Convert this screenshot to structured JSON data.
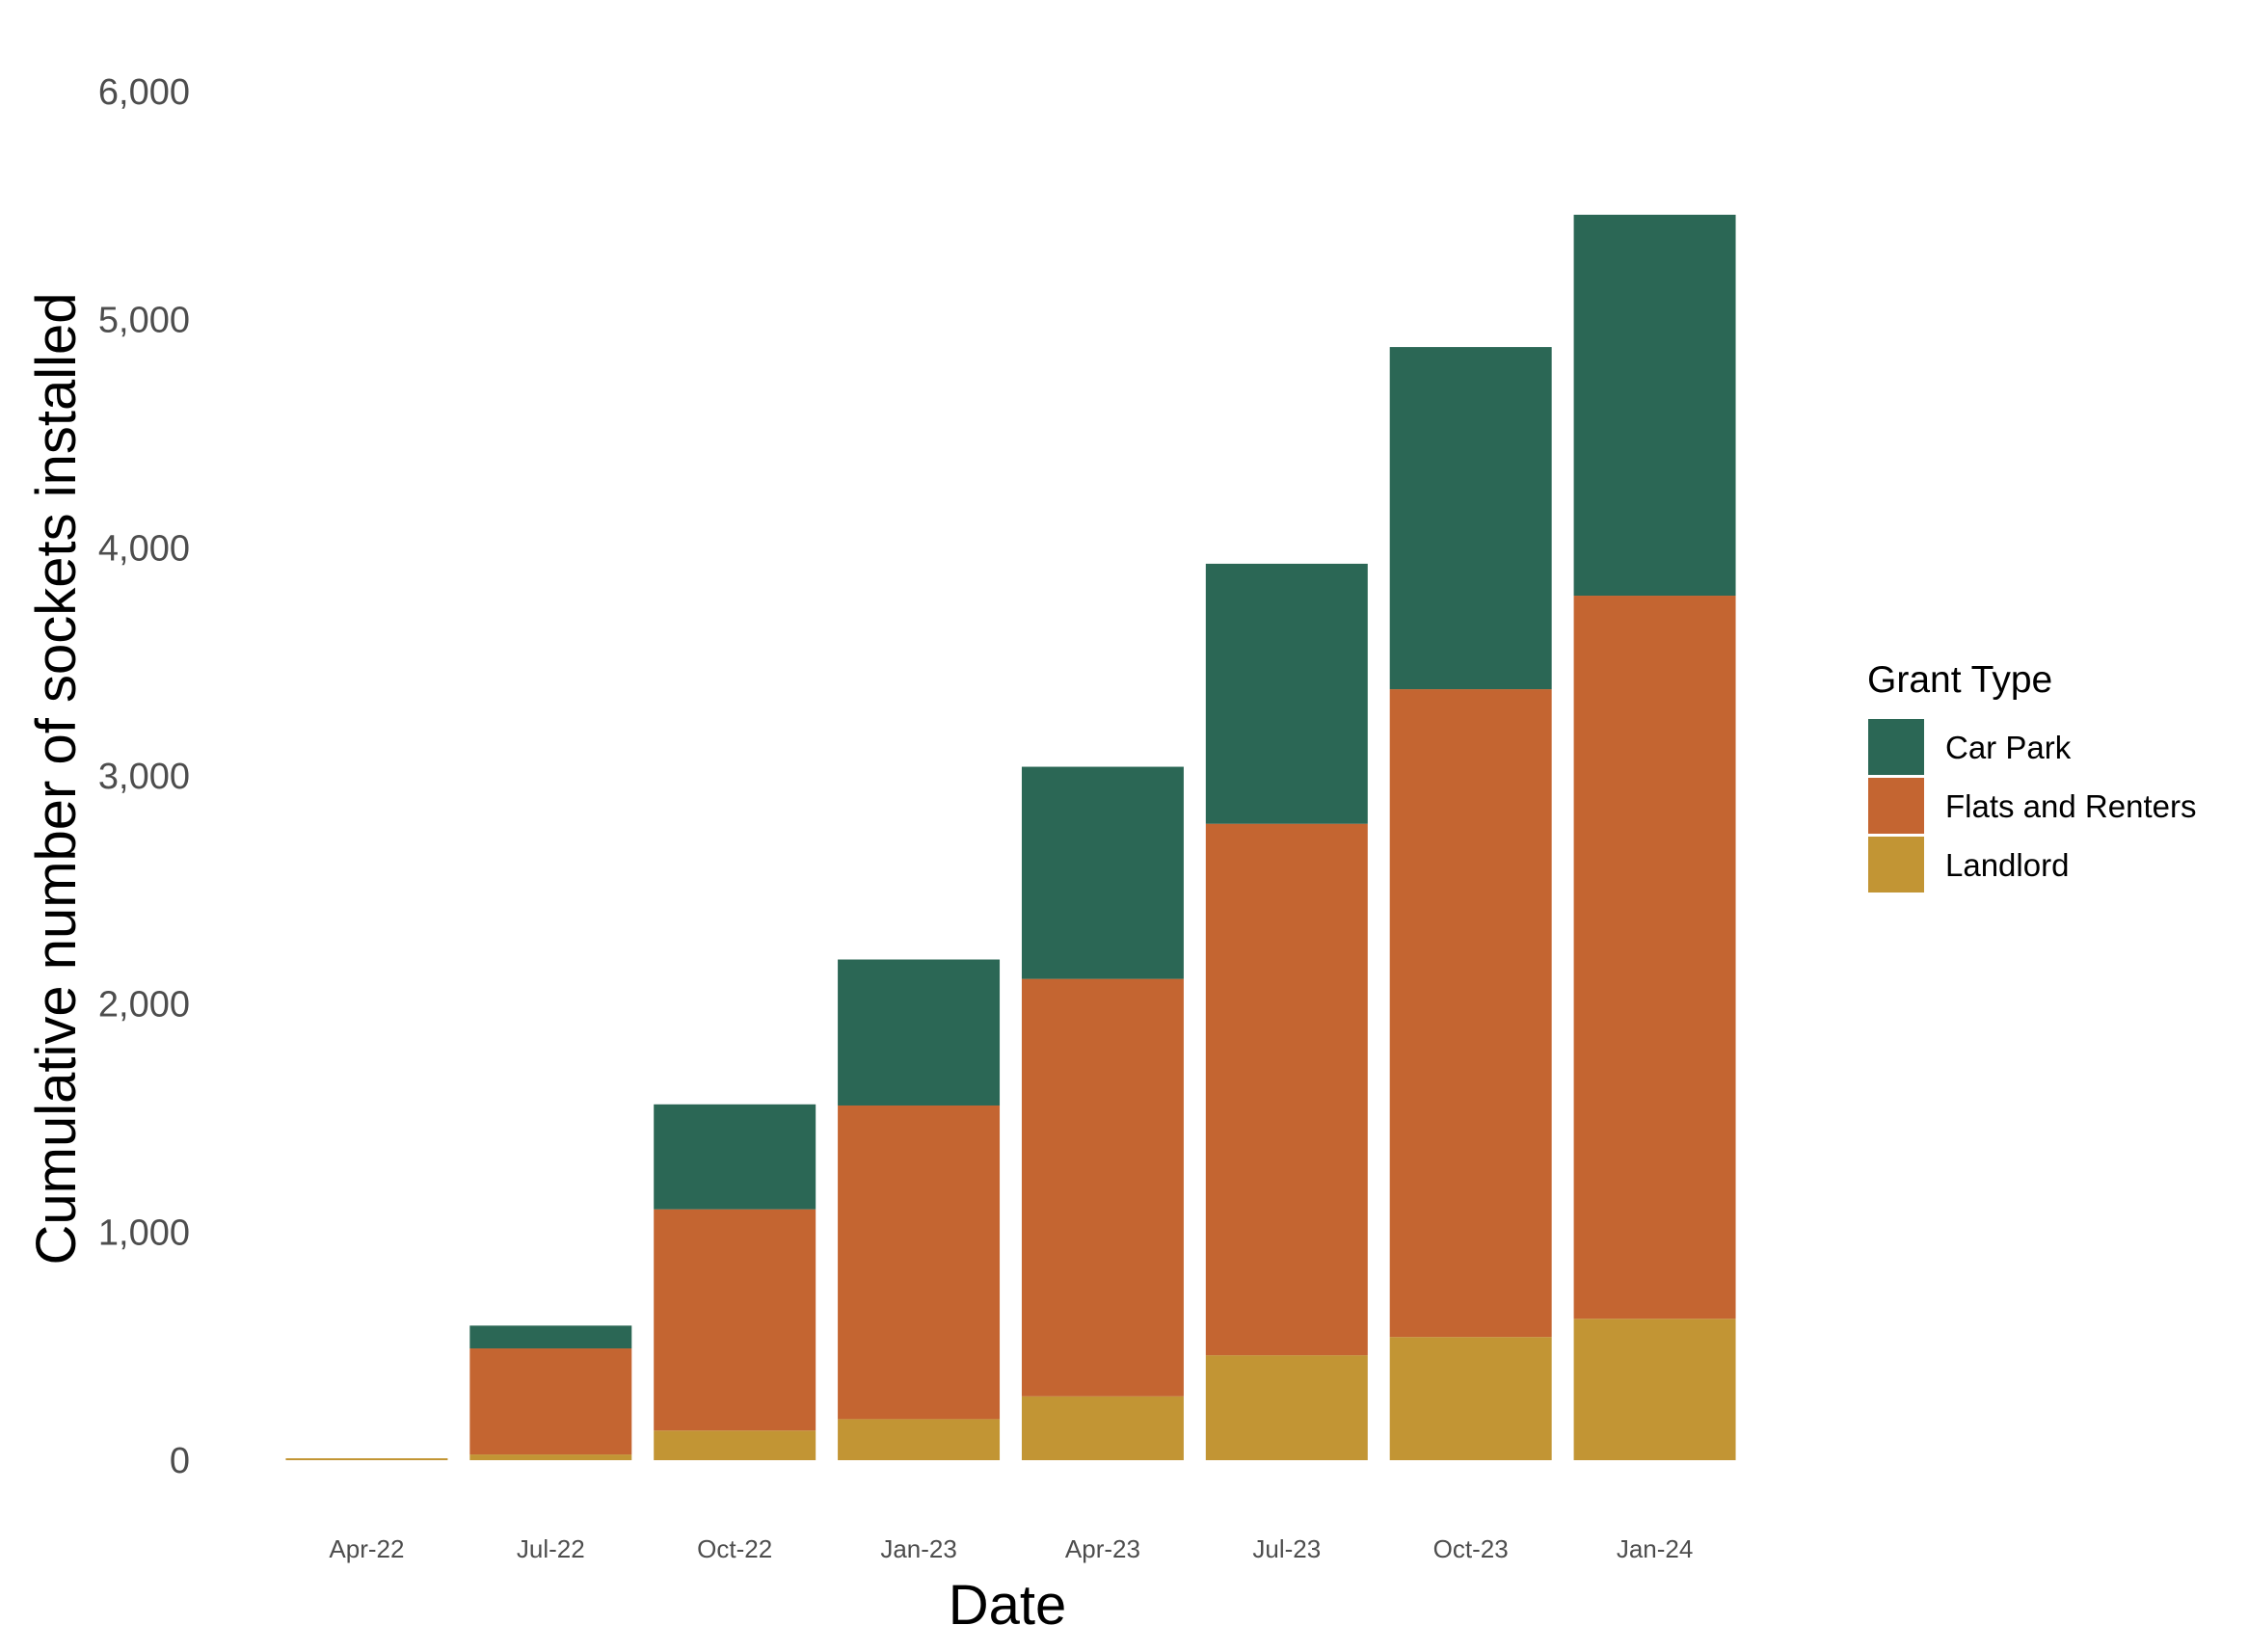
{
  "chart_data": {
    "type": "bar",
    "stacked": true,
    "title": "",
    "xlabel": "Date",
    "ylabel": "Cumulative number of sockets installed",
    "categories": [
      "Apr-22",
      "Jul-22",
      "Oct-22",
      "Jan-23",
      "Apr-23",
      "Jul-23",
      "Oct-23",
      "Jan-24"
    ],
    "series": [
      {
        "name": "Landlord",
        "color": "#C29534",
        "values": [
          5,
          25,
          130,
          180,
          280,
          460,
          540,
          620
        ]
      },
      {
        "name": "Flats and Renters",
        "color": "#C46531",
        "values": [
          0,
          465,
          970,
          1375,
          1830,
          2330,
          2840,
          3170
        ]
      },
      {
        "name": "Car Park",
        "color": "#2B6755",
        "values": [
          0,
          100,
          460,
          640,
          930,
          1140,
          1500,
          1670
        ]
      }
    ],
    "ylim": [
      0,
      6000
    ],
    "yticks": [
      0,
      1000,
      2000,
      3000,
      4000,
      5000,
      6000
    ],
    "ytick_labels": [
      "0",
      "1,000",
      "2,000",
      "3,000",
      "4,000",
      "5,000",
      "6,000"
    ],
    "grid": false,
    "legend": {
      "title": "Grant Type",
      "position": "right",
      "entries": [
        "Car Park",
        "Flats and Renters",
        "Landlord"
      ]
    }
  }
}
